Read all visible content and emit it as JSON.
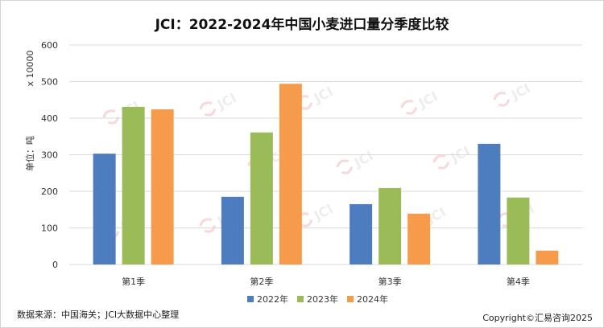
{
  "chart_data": {
    "type": "bar",
    "title": "JCI：2022-2024年中国小麦进口量分季度比较",
    "ylabel": "单位：吨",
    "yunit": "x 10000",
    "categories": [
      "第1季",
      "第2季",
      "第3季",
      "第4季"
    ],
    "series": [
      {
        "name": "2022年",
        "color": "#4e7dbf",
        "values": [
          303,
          185,
          165,
          330
        ]
      },
      {
        "name": "2023年",
        "color": "#9bbb59",
        "values": [
          431,
          361,
          209,
          183
        ]
      },
      {
        "name": "2024年",
        "color": "#f59b4b",
        "values": [
          424,
          494,
          139,
          38
        ]
      }
    ],
    "ylim": [
      0,
      600
    ],
    "yticks": [
      0,
      100,
      200,
      300,
      400,
      500,
      600
    ],
    "grid": true,
    "legend_position": "bottom"
  },
  "watermark": "JCI",
  "source_note": "数据来源：中国海关；JCI大数据中心整理",
  "copyright": "Copyright©汇易咨询2025"
}
